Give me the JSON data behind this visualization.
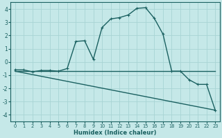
{
  "xlabel": "Humidex (Indice chaleur)",
  "background_color": "#c5e8e8",
  "grid_color": "#a8d4d4",
  "line_color": "#1a6060",
  "xlim": [
    -0.5,
    23.5
  ],
  "ylim": [
    -4.5,
    4.5
  ],
  "xticks": [
    0,
    1,
    2,
    3,
    4,
    5,
    6,
    7,
    8,
    9,
    10,
    11,
    12,
    13,
    14,
    15,
    16,
    17,
    18,
    19,
    20,
    21,
    22,
    23
  ],
  "yticks": [
    -4,
    -3,
    -2,
    -1,
    0,
    1,
    2,
    3,
    4
  ],
  "series": [
    {
      "x": [
        0,
        1,
        2,
        3,
        4,
        5,
        6,
        7,
        8,
        9,
        10,
        11,
        12,
        13,
        14,
        15,
        16,
        17,
        18,
        19,
        20,
        21,
        22,
        23
      ],
      "y": [
        -0.6,
        -0.6,
        -0.75,
        -0.65,
        -0.65,
        -0.7,
        -0.5,
        1.55,
        1.6,
        0.2,
        2.6,
        3.25,
        3.35,
        3.55,
        4.05,
        4.1,
        3.3,
        2.1,
        -0.7,
        -0.7,
        -1.35,
        -1.7,
        -1.7,
        -3.65
      ],
      "marker": "+",
      "markersize": 3.5,
      "linewidth": 1.0,
      "has_marker": true
    },
    {
      "x": [
        0,
        19,
        20,
        21,
        22,
        23
      ],
      "y": [
        -0.7,
        -0.7,
        -0.7,
        -0.7,
        -0.7,
        -0.7
      ],
      "marker": null,
      "markersize": 0,
      "linewidth": 1.0,
      "has_marker": false
    },
    {
      "x": [
        0,
        23
      ],
      "y": [
        -0.7,
        -3.65
      ],
      "marker": null,
      "markersize": 0,
      "linewidth": 1.0,
      "has_marker": false
    }
  ]
}
